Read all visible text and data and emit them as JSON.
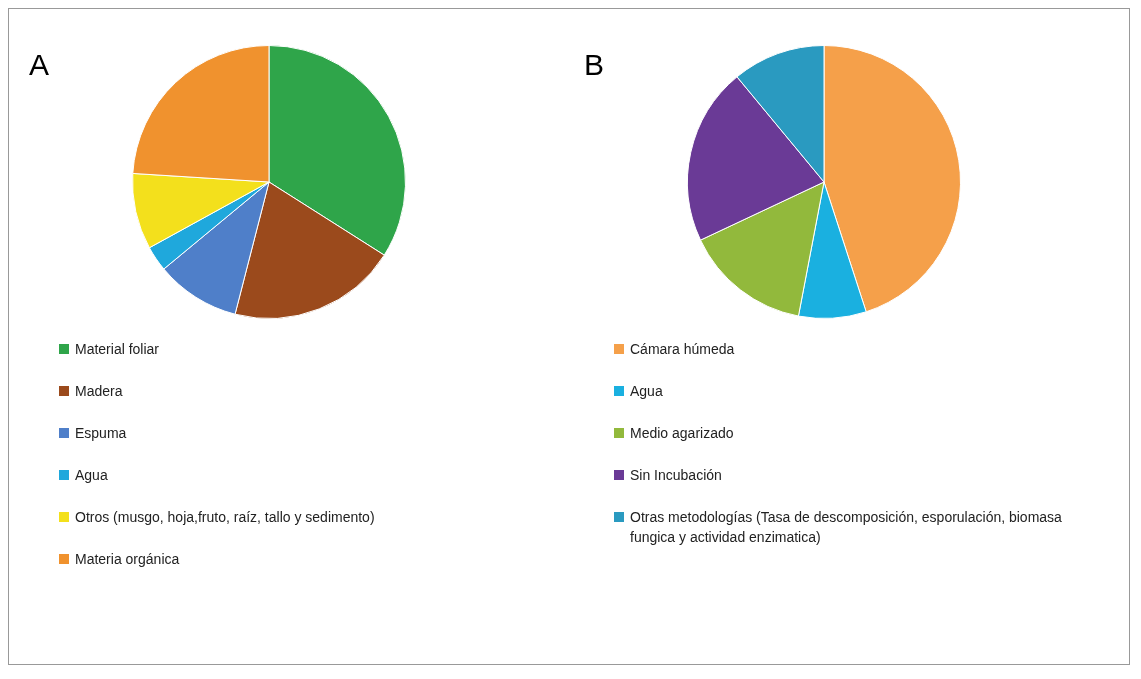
{
  "chart_data": [
    {
      "type": "pie",
      "title": "A",
      "legend": "bottom",
      "categories": [
        "Material foliar",
        "Madera",
        "Espuma",
        "Agua",
        "Otros (musgo, hoja,fruto, raíz, tallo y sedimento)",
        "Materia orgánica"
      ],
      "values": [
        34,
        20,
        10,
        3,
        9,
        24
      ],
      "colors": [
        "#2fa54a",
        "#9b4a1c",
        "#4f7fc9",
        "#1fa8dc",
        "#f3e01c",
        "#f0922e"
      ]
    },
    {
      "type": "pie",
      "title": "B",
      "legend": "bottom",
      "categories": [
        "Cámara húmeda",
        "Agua",
        "Medio agarizado",
        "Sin Incubación",
        "Otras metodologías (Tasa de descomposición, esporulación, biomasa fungica y actividad enzimatica)"
      ],
      "values": [
        45,
        8,
        15,
        21,
        11
      ],
      "colors": [
        "#f5a04a",
        "#1ab0e0",
        "#92b93c",
        "#6a3a96",
        "#2a9ac0"
      ]
    }
  ]
}
